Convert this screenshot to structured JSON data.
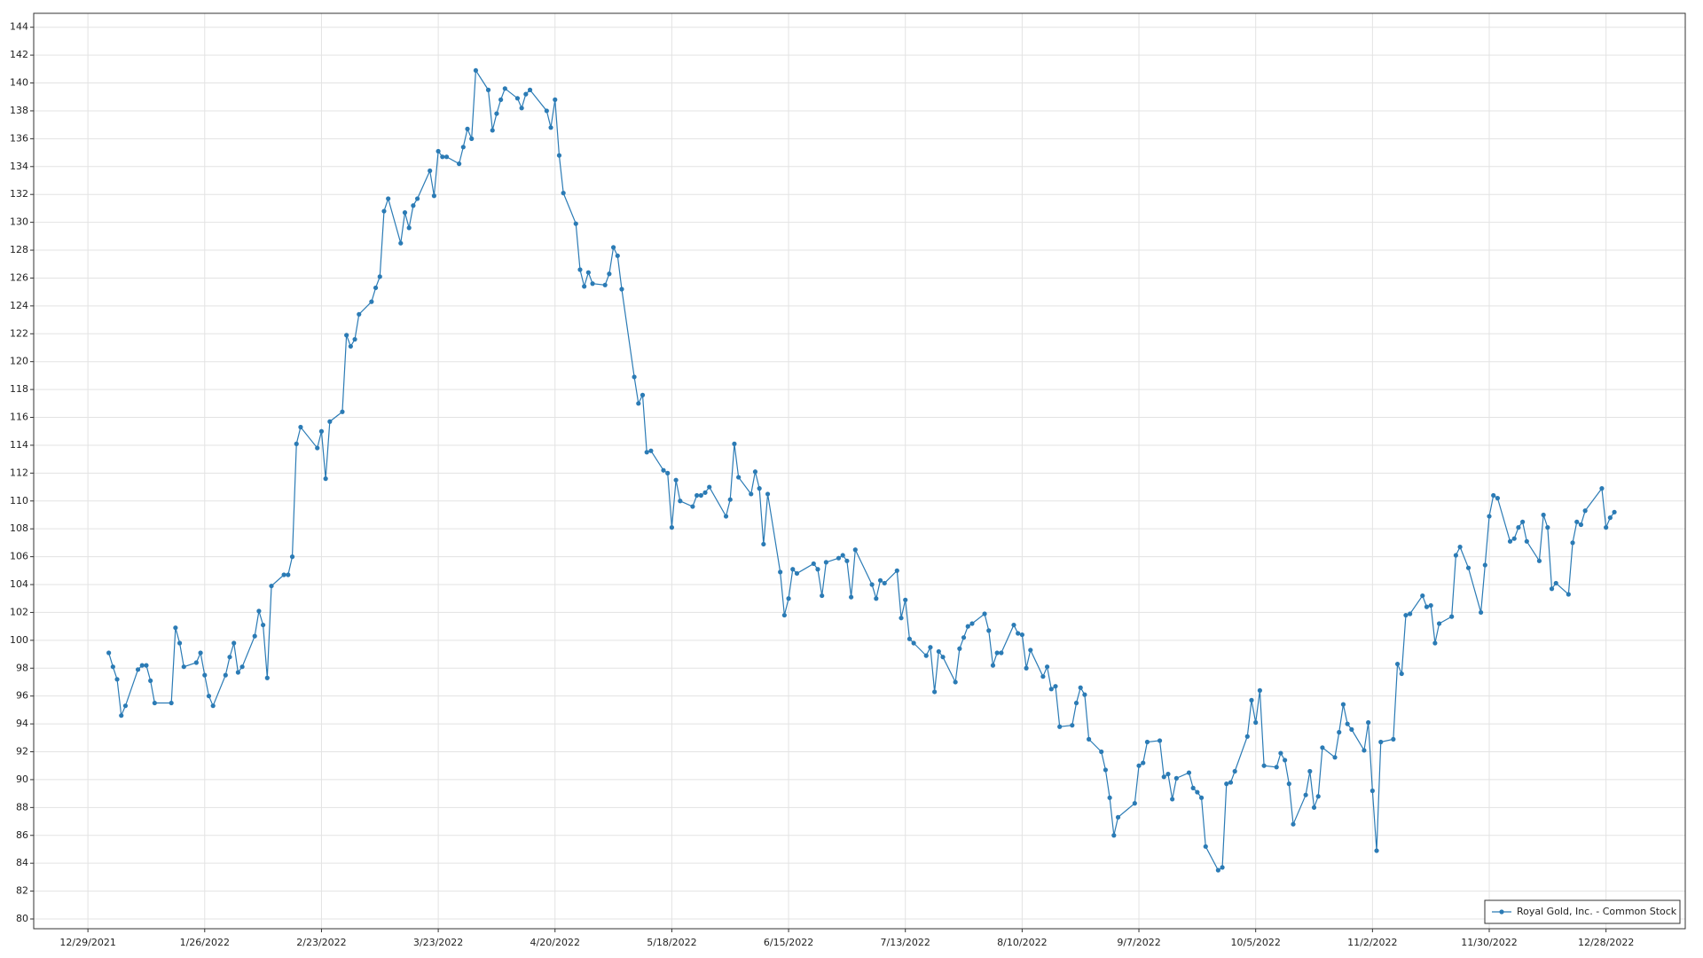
{
  "chart_data": {
    "type": "line",
    "x": [
      "1/3/2022",
      "1/4/2022",
      "1/5/2022",
      "1/6/2022",
      "1/7/2022",
      "1/10/2022",
      "1/11/2022",
      "1/12/2022",
      "1/13/2022",
      "1/14/2022",
      "1/18/2022",
      "1/19/2022",
      "1/20/2022",
      "1/21/2022",
      "1/24/2022",
      "1/25/2022",
      "1/26/2022",
      "1/27/2022",
      "1/28/2022",
      "1/31/2022",
      "2/1/2022",
      "2/2/2022",
      "2/3/2022",
      "2/4/2022",
      "2/7/2022",
      "2/8/2022",
      "2/9/2022",
      "2/10/2022",
      "2/11/2022",
      "2/14/2022",
      "2/15/2022",
      "2/16/2022",
      "2/17/2022",
      "2/18/2022",
      "2/22/2022",
      "2/23/2022",
      "2/24/2022",
      "2/25/2022",
      "2/28/2022",
      "3/1/2022",
      "3/2/2022",
      "3/3/2022",
      "3/4/2022",
      "3/7/2022",
      "3/8/2022",
      "3/9/2022",
      "3/10/2022",
      "3/11/2022",
      "3/14/2022",
      "3/15/2022",
      "3/16/2022",
      "3/17/2022",
      "3/18/2022",
      "3/21/2022",
      "3/22/2022",
      "3/23/2022",
      "3/24/2022",
      "3/25/2022",
      "3/28/2022",
      "3/29/2022",
      "3/30/2022",
      "3/31/2022",
      "4/1/2022",
      "4/4/2022",
      "4/5/2022",
      "4/6/2022",
      "4/7/2022",
      "4/8/2022",
      "4/11/2022",
      "4/12/2022",
      "4/13/2022",
      "4/14/2022",
      "4/18/2022",
      "4/19/2022",
      "4/20/2022",
      "4/21/2022",
      "4/22/2022",
      "4/25/2022",
      "4/26/2022",
      "4/27/2022",
      "4/28/2022",
      "4/29/2022",
      "5/2/2022",
      "5/3/2022",
      "5/4/2022",
      "5/5/2022",
      "5/6/2022",
      "5/9/2022",
      "5/10/2022",
      "5/11/2022",
      "5/12/2022",
      "5/13/2022",
      "5/16/2022",
      "5/17/2022",
      "5/18/2022",
      "5/19/2022",
      "5/20/2022",
      "5/23/2022",
      "5/24/2022",
      "5/25/2022",
      "5/26/2022",
      "5/27/2022",
      "5/31/2022",
      "6/1/2022",
      "6/2/2022",
      "6/3/2022",
      "6/6/2022",
      "6/7/2022",
      "6/8/2022",
      "6/9/2022",
      "6/10/2022",
      "6/13/2022",
      "6/14/2022",
      "6/15/2022",
      "6/16/2022",
      "6/17/2022",
      "6/21/2022",
      "6/22/2022",
      "6/23/2022",
      "6/24/2022",
      "6/27/2022",
      "6/28/2022",
      "6/29/2022",
      "6/30/2022",
      "7/1/2022",
      "7/5/2022",
      "7/6/2022",
      "7/7/2022",
      "7/8/2022",
      "7/11/2022",
      "7/12/2022",
      "7/13/2022",
      "7/14/2022",
      "7/15/2022",
      "7/18/2022",
      "7/19/2022",
      "7/20/2022",
      "7/21/2022",
      "7/22/2022",
      "7/25/2022",
      "7/26/2022",
      "7/27/2022",
      "7/28/2022",
      "7/29/2022",
      "8/1/2022",
      "8/2/2022",
      "8/3/2022",
      "8/4/2022",
      "8/5/2022",
      "8/8/2022",
      "8/9/2022",
      "8/10/2022",
      "8/11/2022",
      "8/12/2022",
      "8/15/2022",
      "8/16/2022",
      "8/17/2022",
      "8/18/2022",
      "8/19/2022",
      "8/22/2022",
      "8/23/2022",
      "8/24/2022",
      "8/25/2022",
      "8/26/2022",
      "8/29/2022",
      "8/30/2022",
      "8/31/2022",
      "9/1/2022",
      "9/2/2022",
      "9/6/2022",
      "9/7/2022",
      "9/8/2022",
      "9/9/2022",
      "9/12/2022",
      "9/13/2022",
      "9/14/2022",
      "9/15/2022",
      "9/16/2022",
      "9/19/2022",
      "9/20/2022",
      "9/21/2022",
      "9/22/2022",
      "9/23/2022",
      "9/26/2022",
      "9/27/2022",
      "9/28/2022",
      "9/29/2022",
      "9/30/2022",
      "10/3/2022",
      "10/4/2022",
      "10/5/2022",
      "10/6/2022",
      "10/7/2022",
      "10/10/2022",
      "10/11/2022",
      "10/12/2022",
      "10/13/2022",
      "10/14/2022",
      "10/17/2022",
      "10/18/2022",
      "10/19/2022",
      "10/20/2022",
      "10/21/2022",
      "10/24/2022",
      "10/25/2022",
      "10/26/2022",
      "10/27/2022",
      "10/28/2022",
      "10/31/2022",
      "11/1/2022",
      "11/2/2022",
      "11/3/2022",
      "11/4/2022",
      "11/7/2022",
      "11/8/2022",
      "11/9/2022",
      "11/10/2022",
      "11/11/2022",
      "11/14/2022",
      "11/15/2022",
      "11/16/2022",
      "11/17/2022",
      "11/18/2022",
      "11/21/2022",
      "11/22/2022",
      "11/23/2022",
      "11/25/2022",
      "11/28/2022",
      "11/29/2022",
      "11/30/2022",
      "12/1/2022",
      "12/2/2022",
      "12/5/2022",
      "12/6/2022",
      "12/7/2022",
      "12/8/2022",
      "12/9/2022",
      "12/12/2022",
      "12/13/2022",
      "12/14/2022",
      "12/15/2022",
      "12/16/2022",
      "12/19/2022",
      "12/20/2022",
      "12/21/2022",
      "12/22/2022",
      "12/23/2022",
      "12/27/2022",
      "12/28/2022",
      "12/29/2022",
      "12/30/2022"
    ],
    "series": [
      {
        "name": "Royal Gold, Inc. - Common Stock",
        "color": "#2b7bb5",
        "values": [
          99.1,
          98.1,
          97.2,
          94.6,
          95.3,
          97.9,
          98.2,
          98.2,
          97.1,
          95.5,
          95.5,
          100.9,
          99.8,
          98.1,
          98.4,
          99.1,
          97.5,
          96.0,
          95.3,
          97.5,
          98.8,
          99.8,
          97.7,
          98.1,
          100.3,
          102.1,
          101.1,
          97.3,
          103.9,
          104.7,
          104.7,
          106.0,
          114.1,
          115.3,
          113.8,
          115.0,
          111.6,
          115.7,
          116.4,
          121.9,
          121.1,
          121.6,
          123.4,
          124.3,
          125.3,
          126.1,
          130.8,
          131.7,
          128.5,
          130.7,
          129.6,
          131.2,
          131.7,
          133.7,
          131.9,
          135.1,
          134.7,
          134.7,
          134.2,
          135.4,
          136.7,
          136.0,
          140.9,
          139.5,
          136.6,
          137.8,
          138.8,
          139.6,
          138.9,
          138.2,
          139.2,
          139.5,
          138.0,
          136.8,
          138.8,
          134.8,
          132.1,
          129.9,
          126.6,
          125.4,
          126.4,
          125.6,
          125.5,
          126.3,
          128.2,
          127.6,
          125.2,
          118.9,
          117.0,
          117.6,
          113.5,
          113.6,
          112.2,
          112.0,
          108.1,
          111.5,
          110.0,
          109.6,
          110.4,
          110.4,
          110.6,
          111.0,
          108.9,
          110.1,
          114.1,
          111.7,
          110.5,
          112.1,
          110.9,
          106.9,
          110.5,
          104.9,
          101.8,
          103.0,
          105.1,
          104.8,
          105.5,
          105.1,
          103.2,
          105.6,
          105.9,
          106.1,
          105.7,
          103.1,
          106.5,
          104.0,
          103.0,
          104.3,
          104.1,
          105.0,
          101.6,
          102.9,
          100.1,
          99.8,
          98.9,
          99.5,
          96.3,
          99.2,
          98.8,
          97.0,
          99.4,
          100.2,
          101.0,
          101.2,
          101.9,
          100.7,
          98.2,
          99.1,
          99.1,
          101.1,
          100.5,
          100.4,
          98.0,
          99.3,
          97.4,
          98.1,
          96.5,
          96.7,
          93.8,
          93.9,
          95.5,
          96.6,
          96.1,
          92.9,
          92.0,
          90.7,
          88.7,
          86.0,
          87.3,
          88.3,
          91.0,
          91.2,
          92.7,
          92.8,
          90.2,
          90.4,
          88.6,
          90.1,
          90.5,
          89.4,
          89.1,
          88.7,
          85.2,
          83.5,
          83.7,
          89.7,
          89.8,
          90.6,
          93.1,
          95.7,
          94.1,
          96.4,
          91.0,
          90.9,
          91.9,
          91.4,
          89.7,
          86.8,
          88.9,
          90.6,
          88.0,
          88.8,
          92.3,
          91.6,
          93.4,
          95.4,
          94.0,
          93.6,
          92.1,
          94.1,
          89.2,
          84.9,
          92.7,
          92.9,
          98.3,
          97.6,
          101.8,
          101.9,
          103.2,
          102.4,
          102.5,
          99.8,
          101.2,
          101.7,
          106.1,
          106.7,
          105.2,
          102.0,
          105.4,
          108.9,
          110.4,
          110.2,
          107.1,
          107.3,
          108.1,
          108.5,
          107.1,
          105.7,
          109.0,
          108.1,
          103.7,
          104.1,
          103.3,
          107.0,
          108.5,
          108.3,
          109.3,
          110.9,
          108.1,
          108.8,
          109.2
        ]
      }
    ],
    "xlim": [
      "12/16/2021",
      "1/16/2023"
    ],
    "xticks": [
      "12/29/2021",
      "1/26/2022",
      "2/23/2022",
      "3/23/2022",
      "4/20/2022",
      "5/18/2022",
      "6/15/2022",
      "7/13/2022",
      "8/10/2022",
      "9/7/2022",
      "10/5/2022",
      "11/2/2022",
      "11/30/2022",
      "12/28/2022"
    ],
    "ylim": [
      79.3,
      145
    ],
    "yticks": [
      80,
      82,
      84,
      86,
      88,
      90,
      92,
      94,
      96,
      98,
      100,
      102,
      104,
      106,
      108,
      110,
      112,
      114,
      116,
      118,
      120,
      122,
      124,
      126,
      128,
      130,
      132,
      134,
      136,
      138,
      140,
      142,
      144
    ],
    "grid": true,
    "markers": true,
    "legend": "lower right"
  }
}
